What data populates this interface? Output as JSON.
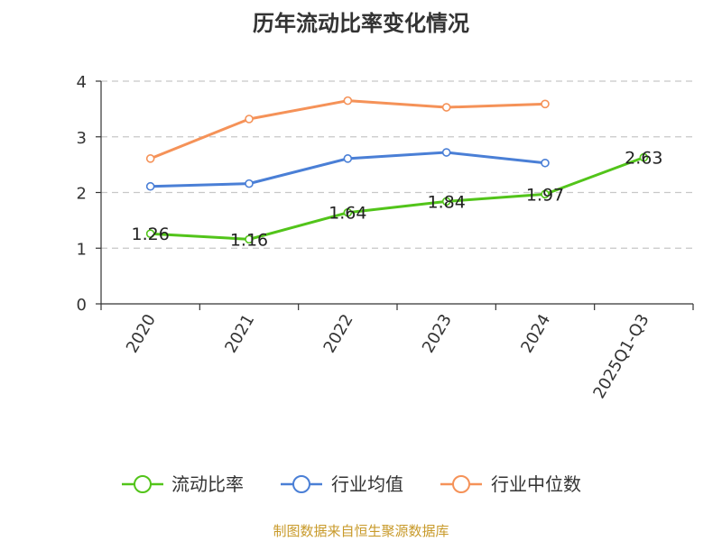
{
  "chart_data": {
    "type": "line",
    "title": "历年流动比率变化情况",
    "categories": [
      "2020",
      "2021",
      "2022",
      "2023",
      "2024",
      "2025Q1-Q3"
    ],
    "ylim": [
      0,
      4
    ],
    "yticks": [
      0,
      1,
      2,
      3,
      4
    ],
    "grid": "horizontal dashed",
    "legend_position": "bottom",
    "series": [
      {
        "name": "流动比率",
        "color": "#52c41a",
        "values": [
          1.26,
          1.16,
          1.64,
          1.84,
          1.97,
          2.63
        ],
        "show_labels": true
      },
      {
        "name": "行业均值",
        "color": "#4a7fd6",
        "values": [
          2.11,
          2.16,
          2.61,
          2.72,
          2.53,
          null
        ],
        "show_labels": false
      },
      {
        "name": "行业中位数",
        "color": "#f59258",
        "values": [
          2.61,
          3.32,
          3.65,
          3.53,
          3.59,
          null
        ],
        "show_labels": false
      }
    ]
  },
  "source": "制图数据来自恒生聚源数据库"
}
